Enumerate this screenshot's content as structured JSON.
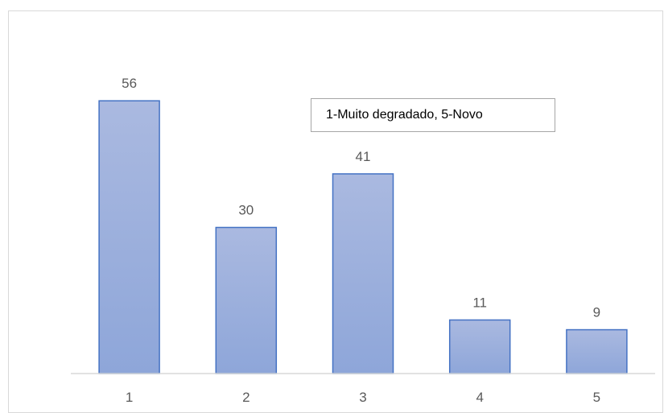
{
  "colors": {
    "bar_top": "#aab9e0",
    "bar_bottom": "#8ea6d9",
    "bar_stroke": "#4472c4",
    "axis": "#d9d9d9",
    "label_text": "#595959"
  },
  "annotation": {
    "text": "1-Muito degradado, 5-Novo"
  },
  "chart_data": {
    "type": "bar",
    "categories": [
      "1",
      "2",
      "3",
      "4",
      "5"
    ],
    "values": [
      56,
      30,
      41,
      11,
      9
    ],
    "data_labels": [
      "56",
      "30",
      "41",
      "11",
      "9"
    ],
    "title": "",
    "xlabel": "",
    "ylabel": "",
    "ylim": [
      0,
      60
    ],
    "grid": false,
    "legend": "none"
  }
}
